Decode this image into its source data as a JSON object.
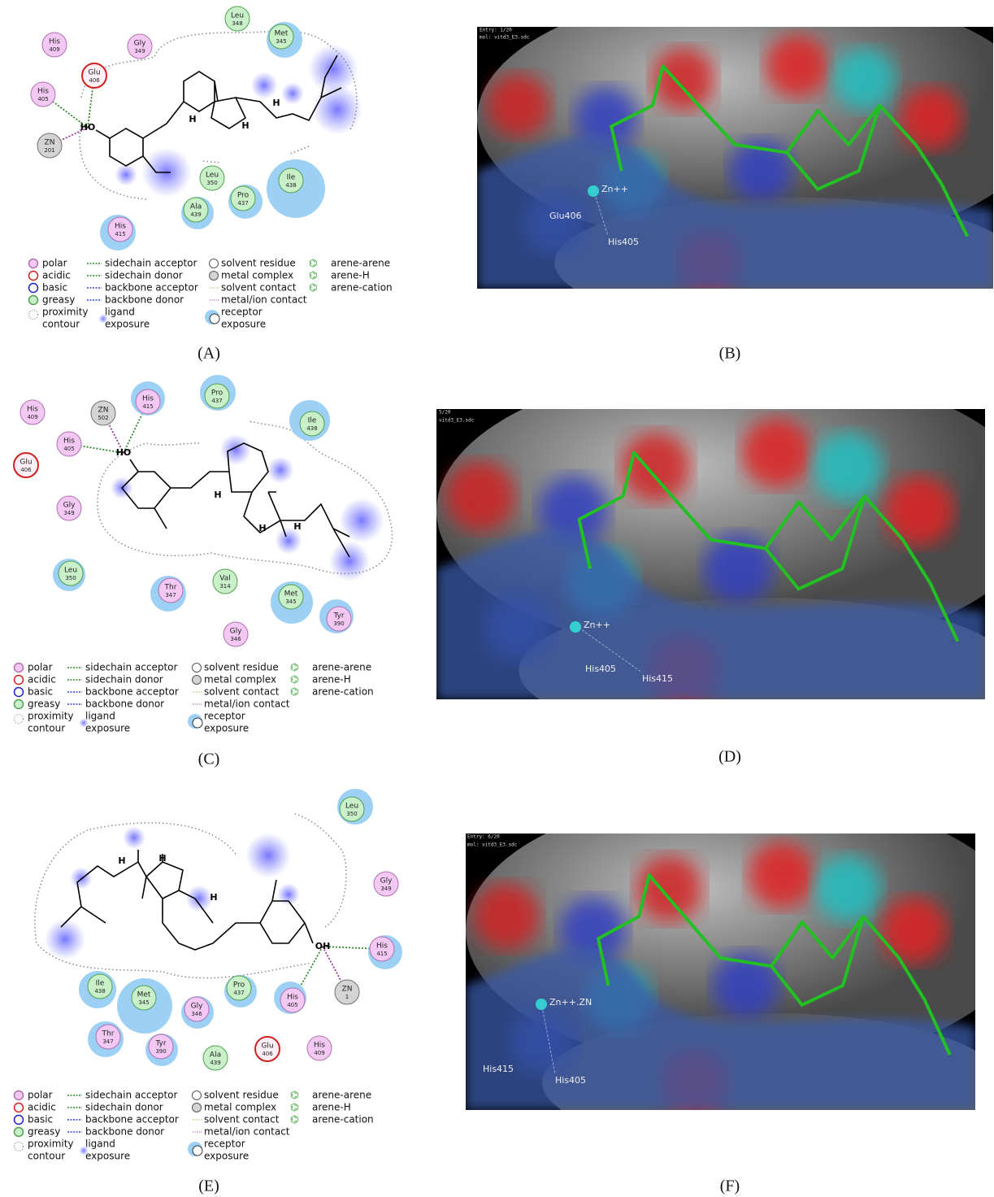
{
  "figure": {
    "panels": [
      {
        "caption": "(A)",
        "residues": [
          {
            "name": "His",
            "num": "409"
          },
          {
            "name": "Gly",
            "num": "349"
          },
          {
            "name": "Leu",
            "num": "348"
          },
          {
            "name": "Met",
            "num": "345"
          },
          {
            "name": "Glu",
            "num": "406"
          },
          {
            "name": "His",
            "num": "405"
          },
          {
            "name": "ZN",
            "num": "201"
          },
          {
            "name": "Leu",
            "num": "350"
          },
          {
            "name": "Ile",
            "num": "438"
          },
          {
            "name": "Pro",
            "num": "437"
          },
          {
            "name": "Ala",
            "num": "439"
          },
          {
            "name": "His",
            "num": "415"
          }
        ],
        "atom_labels": [
          "HO",
          "H",
          "H",
          "H"
        ]
      },
      {
        "caption": "(B)",
        "labels": [
          "Entry: 1/20",
          "mol:  vitd3_E3.sdc",
          "Zn++",
          "Glu406",
          "His405"
        ]
      },
      {
        "caption": "(C)",
        "residues": [
          {
            "name": "His",
            "num": "409"
          },
          {
            "name": "ZN",
            "num": "502"
          },
          {
            "name": "His",
            "num": "415"
          },
          {
            "name": "Pro",
            "num": "437"
          },
          {
            "name": "Ile",
            "num": "438"
          },
          {
            "name": "His",
            "num": "405"
          },
          {
            "name": "Glu",
            "num": "406"
          },
          {
            "name": "Gly",
            "num": "349"
          },
          {
            "name": "Leu",
            "num": "350"
          },
          {
            "name": "Thr",
            "num": "347"
          },
          {
            "name": "Val",
            "num": "314"
          },
          {
            "name": "Met",
            "num": "345"
          },
          {
            "name": "Tyr",
            "num": "390"
          },
          {
            "name": "Gly",
            "num": "346"
          }
        ],
        "atom_labels": [
          "HO",
          "H",
          "H",
          "H"
        ]
      },
      {
        "caption": "(D)",
        "labels": [
          "5/20",
          "vitd3_E3.sdc",
          "Zn++",
          "His405",
          "His415"
        ]
      },
      {
        "caption": "(E)",
        "residues": [
          {
            "name": "Leu",
            "num": "350"
          },
          {
            "name": "Gly",
            "num": "349"
          },
          {
            "name": "His",
            "num": "415"
          },
          {
            "name": "ZN",
            "num": "1"
          },
          {
            "name": "His",
            "num": "405"
          },
          {
            "name": "Pro",
            "num": "437"
          },
          {
            "name": "Ile",
            "num": "438"
          },
          {
            "name": "Met",
            "num": "345"
          },
          {
            "name": "Gly",
            "num": "346"
          },
          {
            "name": "Thr",
            "num": "347"
          },
          {
            "name": "Tyr",
            "num": "390"
          },
          {
            "name": "Ala",
            "num": "439"
          },
          {
            "name": "Glu",
            "num": "406"
          },
          {
            "name": "His",
            "num": "409"
          }
        ],
        "atom_labels": [
          "OH",
          "H",
          "H",
          "H"
        ]
      },
      {
        "caption": "(F)",
        "labels": [
          "Entry: 6/20",
          "mol:  vitd3_E3.sdc",
          "Zn++.ZN",
          "His415",
          "His405"
        ]
      }
    ],
    "legend": {
      "columns": [
        [
          [
            "polar"
          ],
          [
            "acidic"
          ],
          [
            "basic"
          ],
          [
            "greasy"
          ],
          [
            "proximity",
            "contour"
          ]
        ],
        [
          [
            "sidechain acceptor"
          ],
          [
            "sidechain donor"
          ],
          [
            "backbone acceptor"
          ],
          [
            "backbone donor"
          ],
          [
            "ligand",
            "exposure"
          ]
        ],
        [
          [
            "solvent residue"
          ],
          [
            "metal complex"
          ],
          [
            "solvent contact"
          ],
          [
            "metal/ion contact"
          ],
          [
            "receptor",
            "exposure"
          ]
        ],
        [
          [
            "arene-arene"
          ],
          [
            "arene-H"
          ],
          [
            "arene-cation"
          ]
        ]
      ]
    }
  }
}
